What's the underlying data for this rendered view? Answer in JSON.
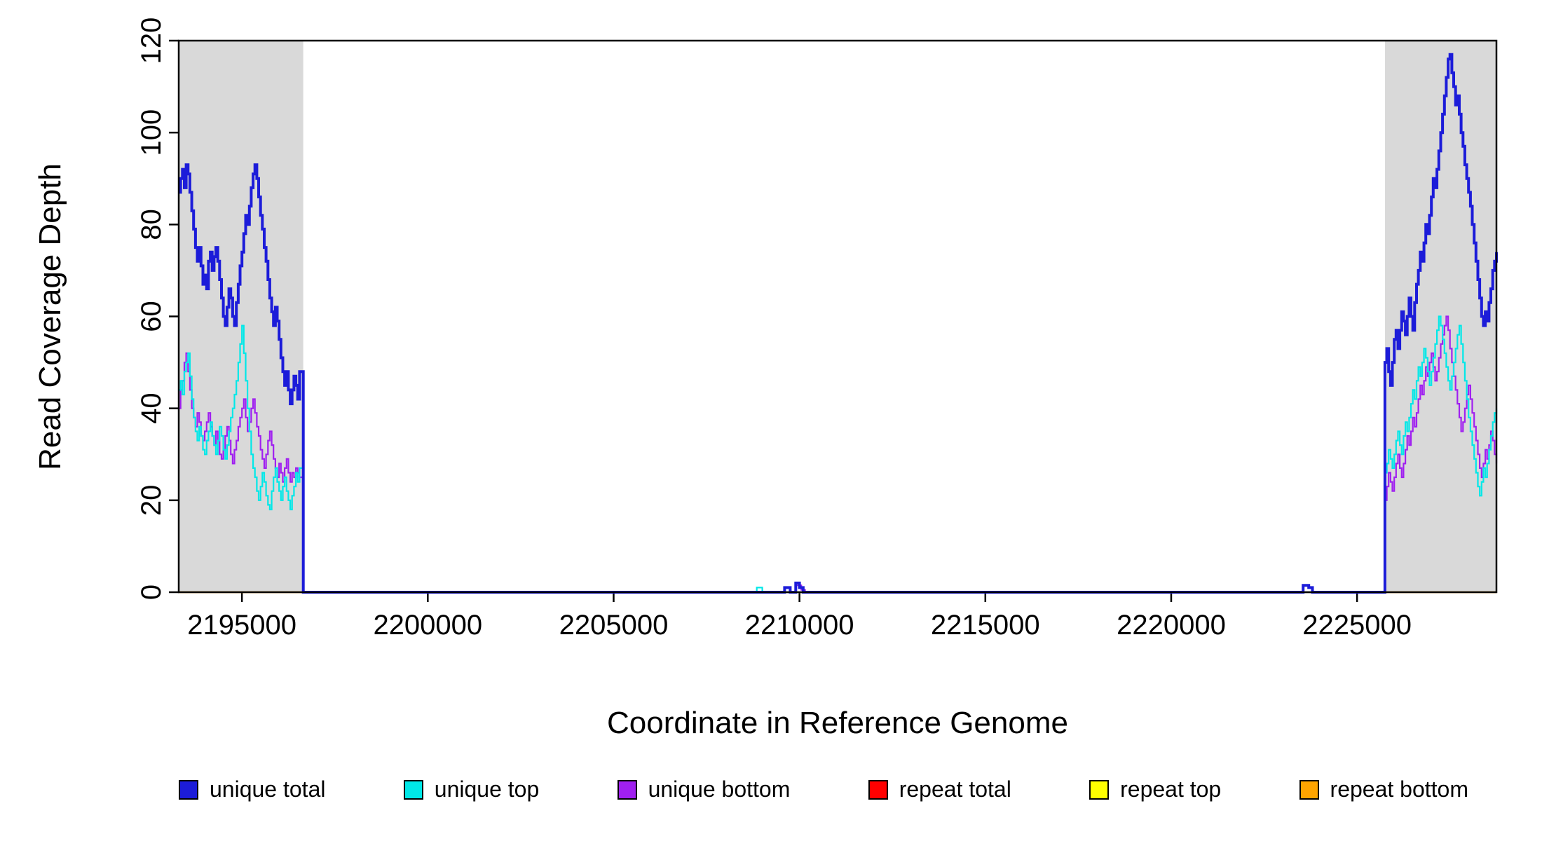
{
  "chart_data": {
    "type": "line",
    "title": "",
    "xlabel": "Coordinate in Reference Genome",
    "ylabel": "Read Coverage Depth",
    "xlim": [
      2193300,
      2228750
    ],
    "ylim": [
      0,
      120
    ],
    "x_ticks": [
      2195000,
      2200000,
      2205000,
      2210000,
      2215000,
      2220000,
      2225000
    ],
    "y_ticks": [
      0,
      20,
      40,
      60,
      80,
      100,
      120
    ],
    "grid": false,
    "shade_color": "#D9D9D9",
    "shaded_regions": [
      [
        2193300,
        2196650
      ],
      [
        2225750,
        2228750
      ]
    ],
    "series": [
      {
        "id": "repeat-total",
        "name": "repeat total",
        "color": "#FF0000",
        "stroke_width": 2.2,
        "segments": [
          {
            "points": [
              [
                2193300,
                0
              ],
              [
                2228750,
                0
              ]
            ]
          }
        ]
      },
      {
        "id": "repeat-top",
        "name": "repeat top",
        "color": "#FFFF00",
        "stroke_width": 2.2,
        "segments": [
          {
            "points": [
              [
                2193300,
                0
              ],
              [
                2228750,
                0
              ]
            ]
          }
        ]
      },
      {
        "id": "repeat-bottom",
        "name": "repeat bottom",
        "color": "#FFA500",
        "stroke_width": 2.2,
        "segments": [
          {
            "points": [
              [
                2193300,
                0
              ],
              [
                2228750,
                0
              ]
            ]
          }
        ]
      },
      {
        "id": "unique-bottom",
        "name": "unique bottom",
        "color": "#A020F0",
        "stroke_width": 2.2,
        "segments": [
          {
            "x_start": 2193300,
            "dx": 50,
            "values": [
              40,
              44,
              46,
              50,
              52,
              48,
              44,
              40,
              38,
              36,
              39,
              37,
              34,
              33,
              35,
              37,
              39,
              36,
              34,
              32,
              35,
              33,
              30,
              29,
              31,
              34,
              36,
              33,
              30,
              28,
              31,
              33,
              36,
              38,
              40,
              42,
              38,
              35,
              37,
              40,
              42,
              39,
              36,
              34,
              31,
              29,
              27,
              30,
              33,
              35,
              32,
              29,
              27,
              25,
              28,
              26,
              24,
              27,
              29,
              26,
              24,
              26,
              25,
              27,
              26,
              25
            ]
          },
          {
            "points": [
              [
                2196650,
                0
              ],
              [
                2209850,
                0
              ],
              [
                2209900,
                1.5
              ],
              [
                2210050,
                0.5
              ],
              [
                2210150,
                0
              ],
              [
                2225700,
                0
              ]
            ]
          },
          {
            "x_start": 2225750,
            "dx": 50,
            "values": [
              20,
              23,
              26,
              24,
              22,
              25,
              28,
              30,
              27,
              25,
              28,
              31,
              34,
              32,
              35,
              38,
              36,
              39,
              42,
              45,
              43,
              46,
              49,
              47,
              50,
              52,
              49,
              46,
              48,
              51,
              54,
              56,
              58,
              60,
              57,
              53,
              50,
              47,
              44,
              41,
              38,
              35,
              37,
              40,
              43,
              45,
              42,
              39,
              36,
              33,
              30,
              27,
              25,
              28,
              31,
              29,
              32,
              35,
              33,
              30,
              28
            ]
          }
        ]
      },
      {
        "id": "unique-top",
        "name": "unique top",
        "color": "#00E8E8",
        "stroke_width": 2.2,
        "segments": [
          {
            "x_start": 2193300,
            "dx": 50,
            "values": [
              44,
              46,
              43,
              48,
              50,
              52,
              47,
              42,
              38,
              35,
              33,
              36,
              34,
              31,
              30,
              33,
              35,
              37,
              34,
              32,
              30,
              33,
              36,
              34,
              31,
              29,
              32,
              35,
              38,
              40,
              43,
              46,
              50,
              54,
              58,
              52,
              46,
              40,
              35,
              30,
              27,
              25,
              22,
              20,
              23,
              26,
              24,
              21,
              19,
              18,
              22,
              25,
              27,
              24,
              22,
              20,
              23,
              25,
              22,
              20,
              18,
              21,
              23,
              26,
              24,
              27
            ]
          },
          {
            "points": [
              [
                2196650,
                0
              ],
              [
                2208800,
                0
              ],
              [
                2208850,
                1
              ],
              [
                2209000,
                0
              ],
              [
                2225700,
                0
              ]
            ]
          },
          {
            "x_start": 2225750,
            "dx": 50,
            "values": [
              26,
              28,
              31,
              29,
              27,
              30,
              33,
              35,
              32,
              30,
              34,
              37,
              35,
              38,
              41,
              44,
              42,
              46,
              49,
              47,
              50,
              53,
              51,
              48,
              45,
              48,
              51,
              54,
              57,
              60,
              58,
              55,
              52,
              49,
              46,
              44,
              47,
              50,
              53,
              56,
              58,
              54,
              50,
              46,
              42,
              38,
              35,
              32,
              29,
              26,
              23,
              21,
              24,
              27,
              25,
              28,
              31,
              34,
              37,
              39,
              40
            ]
          }
        ]
      },
      {
        "id": "unique-total",
        "name": "unique total",
        "color": "#1C1CD9",
        "stroke_width": 4,
        "segments": [
          {
            "x_start": 2193300,
            "dx": 50,
            "values": [
              87,
              90,
              92,
              88,
              93,
              91,
              87,
              83,
              79,
              75,
              72,
              75,
              71,
              67,
              69,
              66,
              72,
              74,
              70,
              73,
              75,
              72,
              68,
              64,
              60,
              58,
              62,
              66,
              64,
              60,
              58,
              63,
              67,
              71,
              74,
              78,
              82,
              80,
              84,
              88,
              91,
              93,
              90,
              86,
              82,
              79,
              75,
              72,
              68,
              64,
              61,
              58,
              62,
              59,
              55,
              51,
              48,
              45,
              48,
              44,
              41,
              44,
              47,
              45,
              42,
              48
            ]
          },
          {
            "points": [
              [
                2196650,
                0
              ],
              [
                2209550,
                0
              ],
              [
                2209600,
                1
              ],
              [
                2209750,
                0
              ],
              [
                2209900,
                2
              ],
              [
                2210000,
                1
              ],
              [
                2210100,
                0
              ],
              [
                2223500,
                0
              ],
              [
                2223550,
                1.5
              ],
              [
                2223700,
                1
              ],
              [
                2223800,
                0
              ],
              [
                2225700,
                0
              ]
            ]
          },
          {
            "x_start": 2225750,
            "dx": 50,
            "values": [
              50,
              53,
              48,
              45,
              50,
              55,
              57,
              53,
              57,
              61,
              59,
              56,
              60,
              64,
              60,
              57,
              63,
              67,
              70,
              74,
              72,
              76,
              80,
              78,
              82,
              86,
              90,
              88,
              92,
              96,
              100,
              104,
              108,
              112,
              116,
              117,
              113,
              110,
              106,
              108,
              104,
              100,
              97,
              93,
              90,
              87,
              84,
              80,
              76,
              72,
              68,
              64,
              60,
              58,
              61,
              59,
              63,
              66,
              70,
              72,
              74
            ]
          }
        ]
      }
    ]
  },
  "legend": {
    "items": [
      {
        "id": "unique-total",
        "label": "unique total",
        "color": "#1C1CD9"
      },
      {
        "id": "unique-top",
        "label": "unique top",
        "color": "#00E8E8"
      },
      {
        "id": "unique-bottom",
        "label": "unique bottom",
        "color": "#A020F0"
      },
      {
        "id": "repeat-total",
        "label": "repeat total",
        "color": "#FF0000"
      },
      {
        "id": "repeat-top",
        "label": "repeat top",
        "color": "#FFFF00"
      },
      {
        "id": "repeat-bottom",
        "label": "repeat bottom",
        "color": "#FFA500"
      }
    ]
  }
}
